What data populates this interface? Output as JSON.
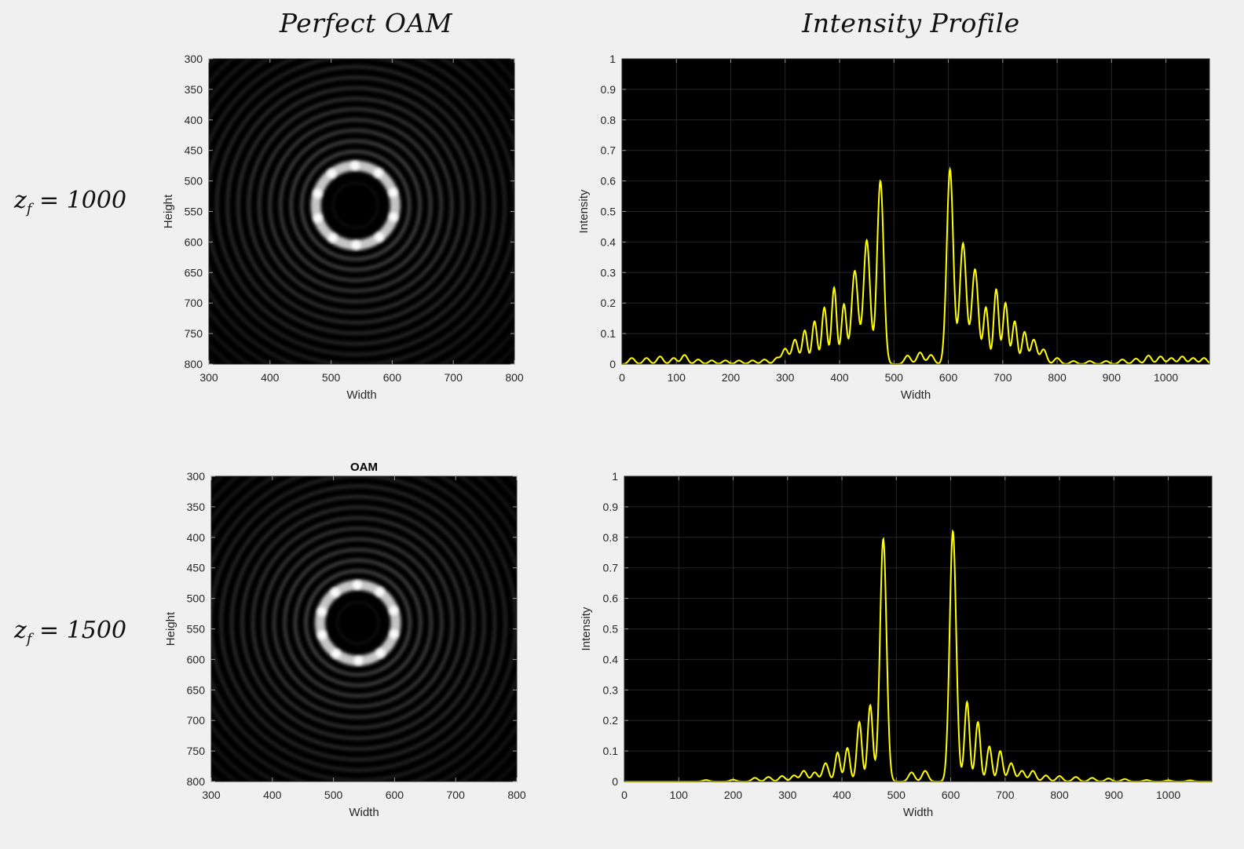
{
  "headers": {
    "left": "Perfect OAM",
    "right": "Intensity Profile"
  },
  "rows": [
    {
      "z_symbol": "z",
      "z_sub": "f",
      "equals": " = ",
      "z_value": "1000"
    },
    {
      "z_symbol": "z",
      "z_sub": "f",
      "equals": " = ",
      "z_value": "1500"
    }
  ],
  "colors": {
    "page_background": "#f0f0f0",
    "plot_background": "#000000",
    "profile_line": "#ffff00",
    "ring_glow": "#ffffff"
  },
  "chart_data": [
    {
      "type": "heatmap",
      "title": "",
      "xlabel": "Width",
      "ylabel": "Height",
      "xlim": [
        300,
        800
      ],
      "ylim": [
        800,
        300
      ],
      "x_ticks": [
        300,
        400,
        500,
        600,
        700,
        800
      ],
      "y_ticks": [
        300,
        350,
        400,
        450,
        500,
        550,
        600,
        650,
        700,
        750,
        800
      ],
      "colormap": "gray",
      "ring_center": [
        540,
        540
      ],
      "ring_radius": 65,
      "ring_lobes": 10
    },
    {
      "type": "line",
      "title": "",
      "xlabel": "Width",
      "ylabel": "Intensity",
      "xlim": [
        0,
        1080
      ],
      "ylim": [
        0,
        1
      ],
      "x_ticks": [
        0,
        100,
        200,
        300,
        400,
        500,
        600,
        700,
        800,
        900,
        1000
      ],
      "y_ticks": [
        0,
        0.1,
        0.2,
        0.3,
        0.4,
        0.5,
        0.6,
        0.7,
        0.8,
        0.9,
        1
      ],
      "grid": true,
      "peaks": [
        {
          "x": 18,
          "y": 0.02
        },
        {
          "x": 45,
          "y": 0.02
        },
        {
          "x": 70,
          "y": 0.025
        },
        {
          "x": 95,
          "y": 0.02
        },
        {
          "x": 115,
          "y": 0.03
        },
        {
          "x": 140,
          "y": 0.015
        },
        {
          "x": 165,
          "y": 0.012
        },
        {
          "x": 190,
          "y": 0.012
        },
        {
          "x": 215,
          "y": 0.012
        },
        {
          "x": 240,
          "y": 0.012
        },
        {
          "x": 262,
          "y": 0.015
        },
        {
          "x": 285,
          "y": 0.02
        },
        {
          "x": 300,
          "y": 0.05
        },
        {
          "x": 318,
          "y": 0.08
        },
        {
          "x": 336,
          "y": 0.11
        },
        {
          "x": 354,
          "y": 0.14
        },
        {
          "x": 372,
          "y": 0.185
        },
        {
          "x": 390,
          "y": 0.25
        },
        {
          "x": 408,
          "y": 0.195
        },
        {
          "x": 428,
          "y": 0.305
        },
        {
          "x": 450,
          "y": 0.405
        },
        {
          "x": 475,
          "y": 0.6
        },
        {
          "x": 525,
          "y": 0.028
        },
        {
          "x": 548,
          "y": 0.038
        },
        {
          "x": 568,
          "y": 0.03
        },
        {
          "x": 603,
          "y": 0.638
        },
        {
          "x": 627,
          "y": 0.395
        },
        {
          "x": 649,
          "y": 0.31
        },
        {
          "x": 669,
          "y": 0.185
        },
        {
          "x": 688,
          "y": 0.245
        },
        {
          "x": 705,
          "y": 0.2
        },
        {
          "x": 722,
          "y": 0.14
        },
        {
          "x": 740,
          "y": 0.105
        },
        {
          "x": 757,
          "y": 0.08
        },
        {
          "x": 775,
          "y": 0.048
        },
        {
          "x": 800,
          "y": 0.02
        },
        {
          "x": 830,
          "y": 0.01
        },
        {
          "x": 860,
          "y": 0.01
        },
        {
          "x": 890,
          "y": 0.01
        },
        {
          "x": 920,
          "y": 0.015
        },
        {
          "x": 945,
          "y": 0.018
        },
        {
          "x": 968,
          "y": 0.028
        },
        {
          "x": 990,
          "y": 0.025
        },
        {
          "x": 1010,
          "y": 0.02
        },
        {
          "x": 1030,
          "y": 0.025
        },
        {
          "x": 1050,
          "y": 0.02
        },
        {
          "x": 1070,
          "y": 0.02
        }
      ]
    },
    {
      "type": "heatmap",
      "title": "OAM",
      "xlabel": "Width",
      "ylabel": "Height",
      "xlim": [
        300,
        800
      ],
      "ylim": [
        800,
        300
      ],
      "x_ticks": [
        300,
        400,
        500,
        600,
        700,
        800
      ],
      "y_ticks": [
        300,
        350,
        400,
        450,
        500,
        550,
        600,
        650,
        700,
        750,
        800
      ],
      "colormap": "gray",
      "ring_center": [
        540,
        540
      ],
      "ring_radius": 62,
      "ring_lobes": 10
    },
    {
      "type": "line",
      "title": "",
      "xlabel": "Width",
      "ylabel": "Intensity",
      "xlim": [
        0,
        1080
      ],
      "ylim": [
        0,
        1
      ],
      "x_ticks": [
        0,
        100,
        200,
        300,
        400,
        500,
        600,
        700,
        800,
        900,
        1000
      ],
      "y_ticks": [
        0,
        0.1,
        0.2,
        0.3,
        0.4,
        0.5,
        0.6,
        0.7,
        0.8,
        0.9,
        1
      ],
      "grid": true,
      "peaks": [
        {
          "x": 150,
          "y": 0.005
        },
        {
          "x": 200,
          "y": 0.006
        },
        {
          "x": 240,
          "y": 0.012
        },
        {
          "x": 265,
          "y": 0.015
        },
        {
          "x": 290,
          "y": 0.018
        },
        {
          "x": 312,
          "y": 0.02
        },
        {
          "x": 330,
          "y": 0.035
        },
        {
          "x": 350,
          "y": 0.03
        },
        {
          "x": 370,
          "y": 0.06
        },
        {
          "x": 392,
          "y": 0.095
        },
        {
          "x": 410,
          "y": 0.11
        },
        {
          "x": 432,
          "y": 0.195
        },
        {
          "x": 452,
          "y": 0.25
        },
        {
          "x": 476,
          "y": 0.795
        },
        {
          "x": 528,
          "y": 0.03
        },
        {
          "x": 553,
          "y": 0.035
        },
        {
          "x": 604,
          "y": 0.82
        },
        {
          "x": 630,
          "y": 0.26
        },
        {
          "x": 650,
          "y": 0.195
        },
        {
          "x": 671,
          "y": 0.115
        },
        {
          "x": 691,
          "y": 0.1
        },
        {
          "x": 711,
          "y": 0.06
        },
        {
          "x": 731,
          "y": 0.035
        },
        {
          "x": 751,
          "y": 0.035
        },
        {
          "x": 775,
          "y": 0.02
        },
        {
          "x": 800,
          "y": 0.018
        },
        {
          "x": 830,
          "y": 0.015
        },
        {
          "x": 860,
          "y": 0.012
        },
        {
          "x": 890,
          "y": 0.01
        },
        {
          "x": 920,
          "y": 0.008
        },
        {
          "x": 960,
          "y": 0.005
        },
        {
          "x": 1000,
          "y": 0.004
        },
        {
          "x": 1040,
          "y": 0.004
        }
      ]
    }
  ]
}
